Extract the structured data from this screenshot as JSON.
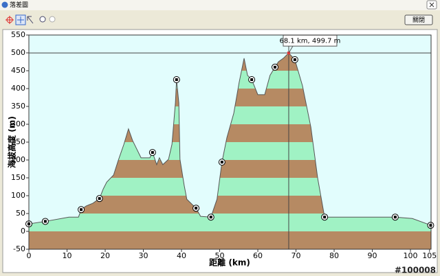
{
  "window": {
    "title": "落差圖"
  },
  "toolbar": {
    "close_button": "關閉"
  },
  "watermark": "#100008",
  "chart_data": {
    "type": "area",
    "x_label": "距離 (km)",
    "y_label": "海拔高度 (m)",
    "xlim": [
      0,
      105.4
    ],
    "ylim": [
      -50,
      550
    ],
    "xticks": [
      0,
      10,
      20,
      30,
      40,
      50,
      60,
      70,
      80,
      90,
      100,
      105
    ],
    "yticks": [
      -50,
      0,
      50,
      100,
      150,
      200,
      250,
      300,
      350,
      400,
      450,
      500,
      550
    ],
    "band_colors": [
      "#b68a63",
      "#a0f2c4"
    ],
    "background": "#e2fdfd",
    "series": [
      {
        "type": "line",
        "color": "#555555",
        "x": [
          0,
          4.3,
          10.5,
          13,
          13.7,
          15,
          16.8,
          18.5,
          19.5,
          20.4,
          22.2,
          23.4,
          24.9,
          26.1,
          27.2,
          29.4,
          31.7,
          32.4,
          33.5,
          34.2,
          35.1,
          36.6,
          37.5,
          38.4,
          38.7,
          39.3,
          39.6,
          40.7,
          41.4,
          43.8,
          45,
          47.7,
          49.3,
          50.6,
          51.9,
          53.7,
          55.1,
          56.4,
          57.3,
          58.4,
          60,
          61.8,
          63.2,
          64.5,
          65.4,
          66.7,
          68.1,
          69.7,
          71.7,
          73.9,
          75.7,
          77.5,
          96,
          100.5,
          105.4
        ],
        "values": [
          21,
          28,
          40,
          40,
          61,
          71,
          79,
          92,
          119,
          138,
          158,
          198,
          244,
          287,
          254,
          206,
          206,
          221,
          187,
          206,
          187,
          202,
          244,
          360,
          425,
          360,
          202,
          129,
          90,
          65,
          42,
          40,
          90,
          194,
          263,
          331,
          417,
          485,
          437,
          425,
          383,
          383,
          437,
          460,
          475,
          485,
          499.7,
          481,
          408,
          292,
          148,
          40,
          40,
          36,
          17
        ]
      },
      {
        "type": "scatter",
        "color": "#000000",
        "x": [
          0,
          4.3,
          13.7,
          18.5,
          32.4,
          38.7,
          43.8,
          47.7,
          50.6,
          58.4,
          64.5,
          69.7,
          77.5,
          96,
          105.3
        ],
        "values": [
          21,
          28,
          61,
          92,
          221,
          425,
          65,
          40,
          194,
          425,
          460,
          481,
          40,
          40,
          17
        ]
      }
    ],
    "cursor": {
      "x": 68.1,
      "y": 499.7,
      "label": "68.1 km, 499.7 m"
    }
  }
}
